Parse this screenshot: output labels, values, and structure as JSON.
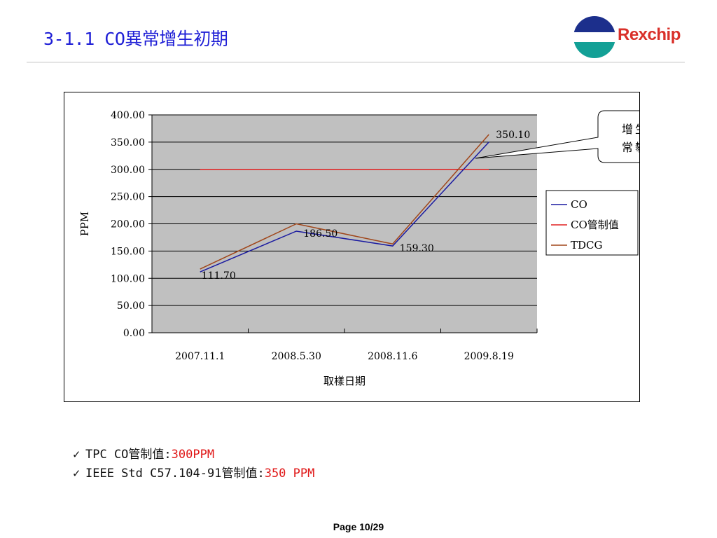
{
  "slide": {
    "title": "3-1.1 CO異常增生初期",
    "logo_text": "Rexchip",
    "page_label": "Page 10/29"
  },
  "chart_data": {
    "type": "line",
    "categories": [
      "2007.11.1",
      "2008.5.30",
      "2008.11.6",
      "2009.8.19"
    ],
    "series": [
      {
        "name": "CO",
        "values": [
          111.7,
          186.5,
          159.3,
          350.1
        ],
        "color": "#1a1aa0"
      },
      {
        "name": "CO管制值",
        "values": [
          300,
          300,
          300,
          300
        ],
        "color": "#e02020"
      },
      {
        "name": "TDCG",
        "values": [
          117,
          200,
          163,
          364
        ],
        "color": "#a0461a"
      }
    ],
    "data_labels": [
      "111.70",
      "186.50",
      "159.30",
      "350.10"
    ],
    "y_ticks": [
      "0.00",
      "50.00",
      "100.00",
      "150.00",
      "200.00",
      "250.00",
      "300.00",
      "350.00",
      "400.00"
    ],
    "ylim": [
      0,
      400
    ],
    "ylabel": "PPM",
    "xlabel": "取樣日期",
    "grid": true,
    "plot_background": "#c0c0c0",
    "legend_position": "right",
    "annotation": {
      "line1": "增生率異",
      "line2": "常攀昇"
    }
  },
  "notes": [
    {
      "prefix": "TPC CO管制值:",
      "value": "300PPM"
    },
    {
      "prefix": "IEEE Std C57.104-91管制值:",
      "value": "350 PPM"
    }
  ],
  "check_symbol": "✓"
}
